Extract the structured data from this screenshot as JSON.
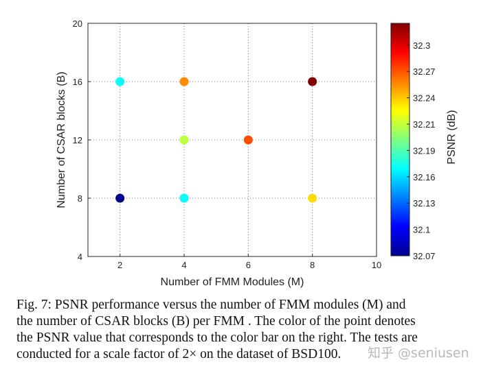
{
  "chart_data": {
    "type": "scatter",
    "xlabel": "Number of FMM Modules (M)",
    "ylabel": "Number of CSAR blocks (B)",
    "xlim": [
      1,
      10
    ],
    "ylim": [
      4,
      20
    ],
    "xticks": [
      "2",
      "4",
      "6",
      "8",
      "10"
    ],
    "yticks": [
      "4",
      "8",
      "12",
      "16",
      "20"
    ],
    "grid": true,
    "colormap": "jet",
    "colorbar": {
      "label": "PSNR (dB)",
      "range": [
        32.07,
        32.32
      ],
      "ticks": [
        "32.07",
        "32.1",
        "32.13",
        "32.16",
        "32.19",
        "32.21",
        "32.24",
        "32.27",
        "32.3"
      ]
    },
    "points": [
      {
        "x": 2,
        "y": 8,
        "psnr": 32.07
      },
      {
        "x": 2,
        "y": 16,
        "psnr": 32.165
      },
      {
        "x": 4,
        "y": 8,
        "psnr": 32.165
      },
      {
        "x": 4,
        "y": 12,
        "psnr": 32.21
      },
      {
        "x": 4,
        "y": 16,
        "psnr": 32.255
      },
      {
        "x": 6,
        "y": 12,
        "psnr": 32.27
      },
      {
        "x": 8,
        "y": 8,
        "psnr": 32.235
      },
      {
        "x": 8,
        "y": 16,
        "psnr": 32.32
      }
    ]
  },
  "caption": [
    "Fig. 7: PSNR performance versus the number of FMM modules (M) and",
    "the number of CSAR blocks (B) per FMM . The color of the point denotes",
    "the PSNR value that corresponds to the color bar on the right. The tests are",
    "conducted for a scale factor of 2× on the dataset of BSD100."
  ],
  "watermark": "知乎 @seniusen"
}
